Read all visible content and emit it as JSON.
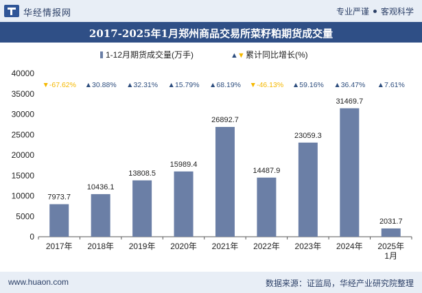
{
  "header": {
    "brand": "华经情报网",
    "tagline_left": "专业严谨",
    "tagline_right": "客观科学"
  },
  "footer": {
    "site": "www.huaon.com",
    "source": "数据来源：证监局，华经产业研究院整理"
  },
  "colors": {
    "bar": "#6b7fa6",
    "up": "#2e4e7e",
    "down": "#f5b800",
    "title_bg": "#2f4f86",
    "header_bg": "#e8eef6"
  },
  "chart_data": {
    "type": "bar",
    "title": "2017-2025年1月郑州商品交易所菜籽粕期货成交量",
    "categories": [
      "2017年",
      "2018年",
      "2019年",
      "2020年",
      "2021年",
      "2022年",
      "2023年",
      "2024年",
      "2025年\n1月"
    ],
    "series": [
      {
        "name": "1-12月期货成交量(万手)",
        "values": [
          7973.7,
          10436.1,
          13808.5,
          15989.4,
          26892.7,
          14487.9,
          23059.3,
          31469.7,
          2031.7
        ],
        "labels": [
          "7973.7",
          "10436.1",
          "13808.5",
          "15989.4",
          "26892.7",
          "14487.9",
          "23059.3",
          "31469.7",
          "2031.7"
        ]
      },
      {
        "name": "累计同比增长(%)",
        "values": [
          -67.62,
          30.88,
          32.31,
          15.79,
          68.19,
          -46.13,
          59.16,
          36.47,
          7.61
        ],
        "labels": [
          "-67.62%",
          "30.88%",
          "32.31%",
          "15.79%",
          "68.19%",
          "-46.13%",
          "59.16%",
          "36.47%",
          "7.61%"
        ]
      }
    ],
    "ylim": [
      0,
      40000
    ],
    "yticks": [
      "0",
      "5000",
      "10000",
      "15000",
      "20000",
      "25000",
      "30000",
      "35000",
      "40000"
    ],
    "legend": {
      "position": "top-center",
      "up_marker": "▲",
      "down_marker": "▼"
    }
  }
}
